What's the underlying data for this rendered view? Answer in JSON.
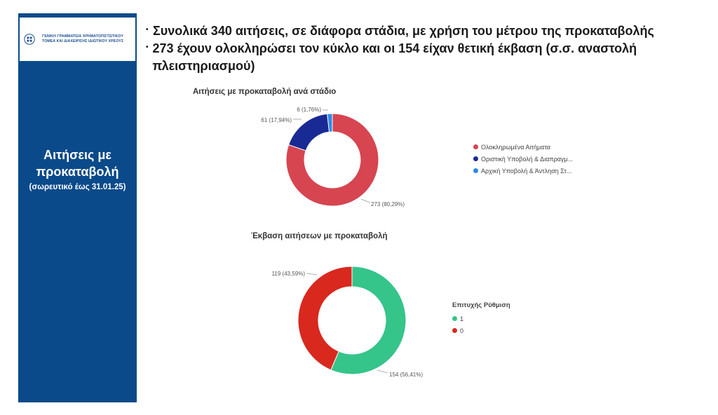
{
  "sidebar": {
    "logo_text": "ΓΕΝΙΚΗ ΓΡΑΜΜΑΤΕΙΑ ΧΡΗΜΑΤΟΠΙΣΤΩΤΙΚΟΥ ΤΟΜΕΑ ΚΑΙ ΔΙΑΧΕΙΡΙΣΗΣ ΙΔΙΩΤΙΚΟΥ ΧΡΕΟΥΣ",
    "title_line1": "Αιτήσεις με",
    "title_line2": "προκαταβολή",
    "subtitle": "(σωρευτικό έως 31.01.25)"
  },
  "bullets": [
    "Συνολικά 340 αιτήσεις, σε διάφορα στάδια, με χρήση του μέτρου της προκαταβολής",
    "273 έχουν ολοκληρώσει τον κύκλο και οι 154 είχαν θετική έκβαση (σ.σ. αναστολή πλειστηριασμού)"
  ],
  "colors": {
    "sidebar": "#0b4a8a",
    "red1": "#d64550",
    "navy": "#1a2a94",
    "blue": "#2f8ae6",
    "green": "#35c48a",
    "red2": "#d9281e"
  },
  "chart_data": [
    {
      "type": "pie",
      "title": "Αιτήσεις με προκαταβολή ανά στάδιο",
      "legend_position": "right",
      "slices": [
        {
          "name": "Ολοκληρωμένα Αιτήματα",
          "value": 273,
          "label": "273 (80,29%)",
          "color": "#d64550"
        },
        {
          "name": "Οριστική Υποβολή & Διαπραγμ...",
          "value": 61,
          "label": "61 (17,94%)",
          "color": "#1a2a94"
        },
        {
          "name": "Αρχική Υποβολή & Άντληση Στ...",
          "value": 6,
          "label": "6 (1,76%)",
          "color": "#2f8ae6"
        }
      ]
    },
    {
      "type": "pie",
      "title": "Έκβαση αιτήσεων με προκαταβολή",
      "legend_title": "Επιτυχής Ρύθμιση",
      "legend_position": "right",
      "slices": [
        {
          "name": "1",
          "value": 154,
          "label": "154 (56,41%)",
          "color": "#35c48a"
        },
        {
          "name": "0",
          "value": 119,
          "label": "119 (43,59%)",
          "color": "#d9281e"
        }
      ]
    }
  ]
}
